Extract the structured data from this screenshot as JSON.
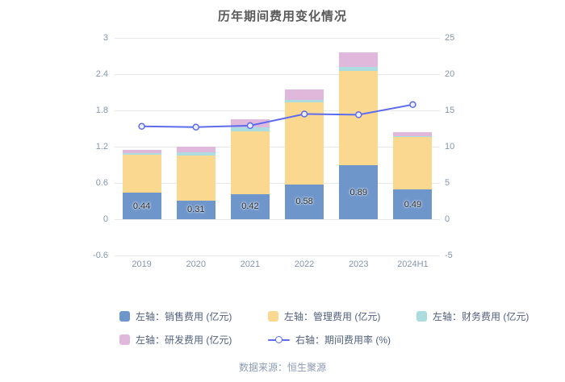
{
  "title": "历年期间费用变化情况",
  "footer": "数据来源：恒生聚源",
  "chart_data": {
    "type": "bar",
    "title": "历年期间费用变化情况",
    "categories": [
      "2019",
      "2020",
      "2021",
      "2022",
      "2023",
      "2024H1"
    ],
    "series": [
      {
        "name": "左轴：销售费用 (亿元)",
        "kind": "bar",
        "axis": "left",
        "color": "#6f96ca",
        "show_labels": true,
        "values": [
          0.44,
          0.31,
          0.42,
          0.58,
          0.89,
          0.49
        ]
      },
      {
        "name": "左轴：管理费用 (亿元)",
        "kind": "bar",
        "axis": "left",
        "color": "#fbd88f",
        "show_labels": false,
        "values": [
          0.63,
          0.74,
          1.04,
          1.36,
          1.56,
          0.87
        ]
      },
      {
        "name": "左轴：财务费用 (亿元)",
        "kind": "bar",
        "axis": "left",
        "color": "#aadce0",
        "show_labels": false,
        "values": [
          0.02,
          0.06,
          0.06,
          0.04,
          0.07,
          0.02
        ]
      },
      {
        "name": "左轴：研发费用 (亿元)",
        "kind": "bar",
        "axis": "left",
        "color": "#e0b8dc",
        "show_labels": false,
        "values": [
          0.06,
          0.09,
          0.13,
          0.17,
          0.24,
          0.06
        ]
      },
      {
        "name": "右轴：期间费用率 (%)",
        "kind": "line",
        "axis": "right",
        "color": "#5d6bef",
        "marker_fill": "#eef0fe",
        "values": [
          12.8,
          12.7,
          12.9,
          14.5,
          14.4,
          15.8
        ]
      }
    ],
    "left_axis": {
      "min": -0.6,
      "max": 3,
      "ticks": [
        3,
        2.4,
        1.8,
        1.2,
        0.6,
        0,
        -0.6
      ]
    },
    "right_axis": {
      "min": -5,
      "max": 25,
      "ticks": [
        25,
        20,
        15,
        10,
        5,
        0,
        -5
      ]
    },
    "grid": true,
    "legend_position": "bottom",
    "bar_stacked": true
  }
}
